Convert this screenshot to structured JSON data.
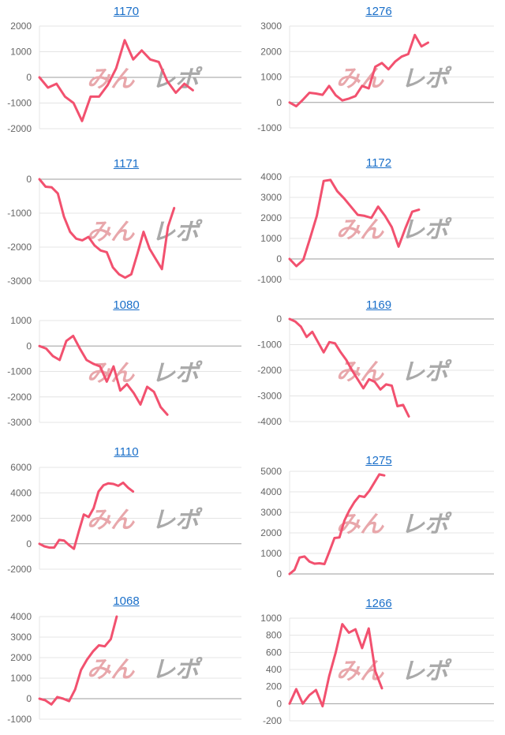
{
  "watermark": {
    "text_left": "みん",
    "text_right": "レポ",
    "colors": [
      "#e8a7ab",
      "#a9a9a9"
    ]
  },
  "line_color": "#f2516f",
  "chart_data": [
    {
      "type": "line",
      "title": "1170",
      "ylim": [
        -2000,
        2000
      ],
      "yticks": [
        2000,
        1000,
        0,
        -1000,
        -2000
      ],
      "xlim": [
        0,
        23.7
      ],
      "values": [
        0,
        -400,
        -250,
        -750,
        -1000,
        -1700,
        -750,
        -750,
        -300,
        350,
        1450,
        700,
        1050,
        700,
        600,
        -150,
        -600,
        -250,
        -500
      ]
    },
    {
      "type": "line",
      "title": "1276",
      "ylim": [
        -1000,
        3000
      ],
      "yticks": [
        3000,
        2000,
        1000,
        0,
        -1000
      ],
      "xlim": [
        0,
        31
      ],
      "values": [
        0,
        -150,
        100,
        380,
        350,
        300,
        650,
        280,
        80,
        150,
        250,
        650,
        550,
        1400,
        1550,
        1300,
        1600,
        1800,
        1900,
        2650,
        2200,
        2350
      ]
    },
    {
      "type": "line",
      "title": "1171",
      "ylim": [
        -3000,
        0
      ],
      "yticks": [
        0,
        -1000,
        -2000,
        -3000
      ],
      "xlim": [
        0,
        33
      ],
      "values": [
        0,
        -220,
        -240,
        -420,
        -1100,
        -1550,
        -1750,
        -1800,
        -1700,
        -1950,
        -2100,
        -2150,
        -2600,
        -2800,
        -2900,
        -2800,
        -2200,
        -1550,
        -2050,
        -2350,
        -2650,
        -1400,
        -850
      ]
    },
    {
      "type": "line",
      "title": "1172",
      "ylim": [
        -1000,
        4000
      ],
      "yticks": [
        4000,
        3000,
        2000,
        1000,
        0,
        -1000
      ],
      "xlim": [
        0,
        30
      ],
      "values": [
        0,
        -350,
        -50,
        1000,
        2100,
        3800,
        3850,
        3300,
        2950,
        2550,
        2150,
        2100,
        2000,
        2550,
        2100,
        1550,
        600,
        1500,
        2300,
        2400
      ]
    },
    {
      "type": "line",
      "title": "1080",
      "ylim": [
        -3000,
        1000
      ],
      "yticks": [
        1000,
        0,
        -1000,
        -2000,
        -3000
      ],
      "xlim": [
        0,
        30
      ],
      "values": [
        0,
        -100,
        -400,
        -550,
        200,
        400,
        -100,
        -550,
        -700,
        -800,
        -1400,
        -800,
        -1750,
        -1500,
        -1850,
        -2300,
        -1600,
        -1800,
        -2400,
        -2700
      ]
    },
    {
      "type": "line",
      "title": "1169",
      "ylim": [
        -4000,
        0
      ],
      "yticks": [
        0,
        -1000,
        -2000,
        -3000,
        -4000
      ],
      "xlim": [
        0,
        36
      ],
      "values": [
        0,
        -100,
        -300,
        -700,
        -500,
        -900,
        -1300,
        -900,
        -950,
        -1300,
        -1600,
        -2000,
        -2350,
        -2700,
        -2350,
        -2450,
        -2750,
        -2550,
        -2600,
        -3400,
        -3350,
        -3800
      ]
    },
    {
      "type": "line",
      "title": "1110",
      "ylim": [
        -2000,
        6000
      ],
      "yticks": [
        6000,
        4000,
        2000,
        0,
        -2000
      ],
      "xlim": [
        0,
        41
      ],
      "values": [
        0,
        -200,
        -300,
        -300,
        300,
        250,
        -100,
        -400,
        1000,
        2300,
        2100,
        2800,
        4100,
        4600,
        4750,
        4700,
        4550,
        4800,
        4400,
        4100
      ]
    },
    {
      "type": "line",
      "title": "1275",
      "ylim": [
        0,
        5000
      ],
      "yticks": [
        5000,
        4000,
        3000,
        2000,
        1000,
        0
      ],
      "xlim": [
        0,
        41
      ],
      "values": [
        0,
        200,
        800,
        850,
        600,
        500,
        520,
        480,
        1100,
        1750,
        1780,
        2600,
        3100,
        3500,
        3800,
        3750,
        4050,
        4450,
        4850,
        4800
      ]
    },
    {
      "type": "line",
      "title": "1068",
      "ylim": [
        -1000,
        4000
      ],
      "yticks": [
        4000,
        3000,
        2000,
        1000,
        0,
        -1000
      ],
      "xlim": [
        0,
        34
      ],
      "values": [
        0,
        -80,
        -280,
        80,
        0,
        -120,
        450,
        1400,
        1900,
        2300,
        2600,
        2550,
        2900,
        4000
      ]
    },
    {
      "type": "line",
      "title": "1266",
      "ylim": [
        -200,
        1000
      ],
      "yticks": [
        1000,
        800,
        600,
        400,
        200,
        0,
        -200
      ],
      "xlim": [
        0,
        31
      ],
      "values": [
        0,
        170,
        0,
        100,
        160,
        -30,
        320,
        600,
        930,
        830,
        870,
        650,
        880,
        380,
        180
      ]
    }
  ]
}
